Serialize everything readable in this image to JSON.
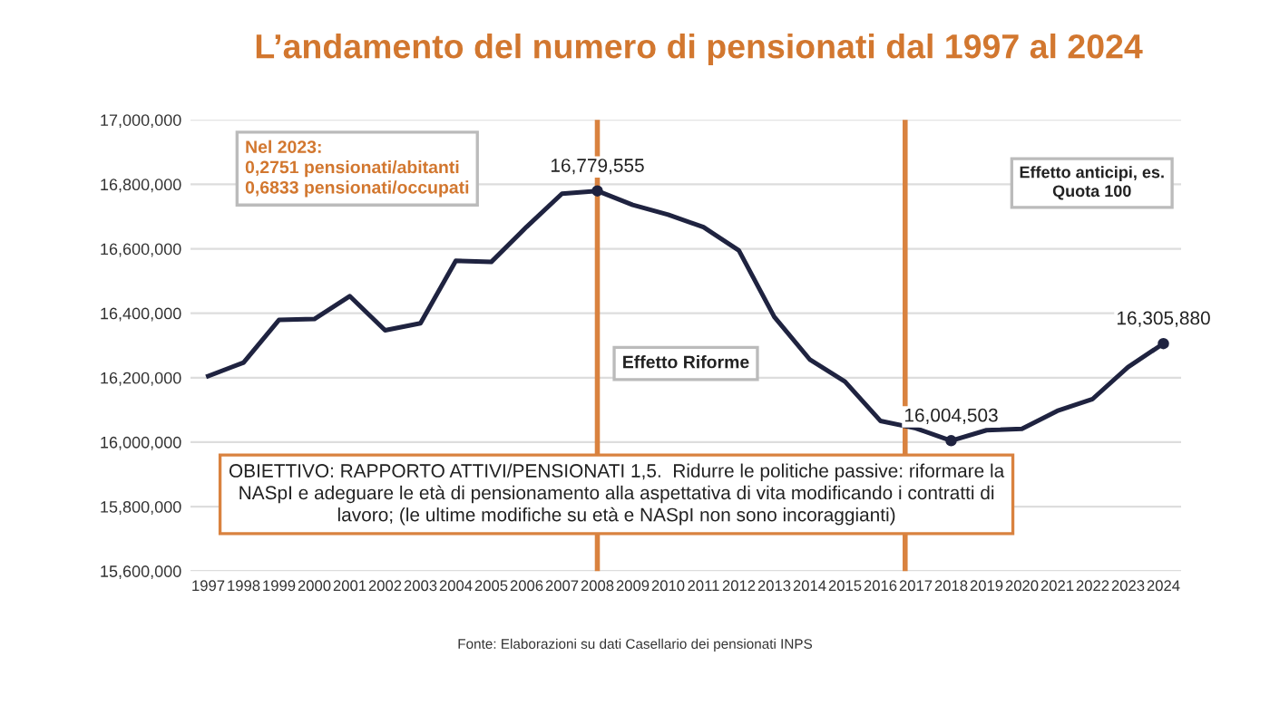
{
  "chart_data": {
    "type": "line",
    "title": "L’andamento del numero di pensionati dal 1997 al 2024",
    "x": [
      1997,
      1998,
      1999,
      2000,
      2001,
      2002,
      2003,
      2004,
      2005,
      2006,
      2007,
      2008,
      2009,
      2010,
      2011,
      2012,
      2013,
      2014,
      2015,
      2016,
      2017,
      2018,
      2019,
      2020,
      2021,
      2022,
      2023,
      2024
    ],
    "series": [
      {
        "color": "#1f2340",
        "values": [
          16205000,
          16247000,
          16379000,
          16382000,
          16453000,
          16347000,
          16369000,
          16563000,
          16559000,
          16668000,
          16771000,
          16779555,
          16736000,
          16706000,
          16667000,
          16595000,
          16389000,
          16257000,
          16188000,
          16066000,
          16043000,
          16004503,
          16037000,
          16041000,
          16097000,
          16134000,
          16233000,
          16305880
        ]
      }
    ],
    "xlim": [
      1996.5,
      2024.5
    ],
    "xticks": [
      1997,
      1998,
      1999,
      2000,
      2001,
      2002,
      2003,
      2004,
      2005,
      2006,
      2007,
      2008,
      2009,
      2010,
      2011,
      2012,
      2013,
      2014,
      2015,
      2016,
      2017,
      2018,
      2019,
      2020,
      2021,
      2022,
      2023,
      2024
    ],
    "ylim": [
      15600000,
      17000000
    ],
    "yticks": [
      {
        "value": 15600000,
        "label": "15,600,000"
      },
      {
        "value": 15800000,
        "label": "15,800,000"
      },
      {
        "value": 16000000,
        "label": "16,000,000"
      },
      {
        "value": 16200000,
        "label": "16,200,000"
      },
      {
        "value": 16400000,
        "label": "16,400,000"
      },
      {
        "value": 16600000,
        "label": "16,600,000"
      },
      {
        "value": 16800000,
        "label": "16,800,000"
      },
      {
        "value": 17000000,
        "label": "17,000,000"
      }
    ],
    "grid": "y",
    "marker": "none",
    "line_style": "solid",
    "ref_lines": [
      {
        "axis": "x",
        "value": 2008,
        "color": "#d9823f"
      },
      {
        "axis": "x",
        "value": 2016.7,
        "color": "#d9823f"
      }
    ],
    "annotations": [
      {
        "text": "16,779,555",
        "x": 2008,
        "y": 16779555
      },
      {
        "text": "16,004,503",
        "x": 2018,
        "y": 16004503
      },
      {
        "text": "16,305,880",
        "x": 2024,
        "y": 16305880
      },
      "Nel 2023:\n0,2751 pensionati/abitanti\n0,6833 pensionati/occupati",
      "Effetto Riforme",
      "Effetto anticipi, es.\nQuota 100",
      "OBIETTIVO: RAPPORTO ATTIVI/PENSIONATI 1,5.  Ridurre le politiche passive: riformare la NASpI e adeguare le età di pensionamento alla aspettativa di vita modificando i contratti di lavoro; (le ultime modifiche su età e NASpI non sono incoraggianti)",
      "Fonte: Elaborazioni su dati Casellario dei pensionati INPS"
    ]
  }
}
